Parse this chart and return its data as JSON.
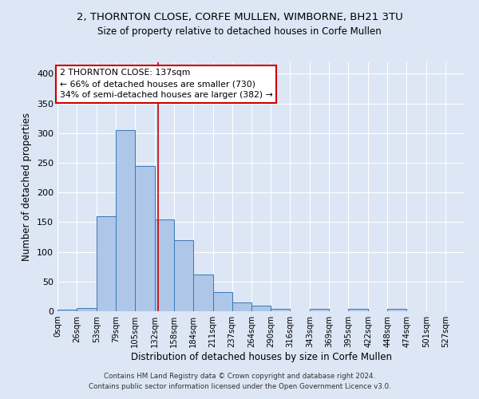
{
  "title1": "2, THORNTON CLOSE, CORFE MULLEN, WIMBORNE, BH21 3TU",
  "title2": "Size of property relative to detached houses in Corfe Mullen",
  "xlabel": "Distribution of detached houses by size in Corfe Mullen",
  "ylabel": "Number of detached properties",
  "bin_labels": [
    "0sqm",
    "26sqm",
    "53sqm",
    "79sqm",
    "105sqm",
    "132sqm",
    "158sqm",
    "184sqm",
    "211sqm",
    "237sqm",
    "264sqm",
    "290sqm",
    "316sqm",
    "343sqm",
    "369sqm",
    "395sqm",
    "422sqm",
    "448sqm",
    "474sqm",
    "501sqm",
    "527sqm"
  ],
  "bar_heights": [
    3,
    5,
    160,
    305,
    245,
    155,
    120,
    62,
    32,
    15,
    9,
    4,
    0,
    4,
    0,
    4,
    0,
    4,
    0,
    0
  ],
  "bin_edges": [
    0,
    26,
    53,
    79,
    105,
    132,
    158,
    184,
    211,
    237,
    264,
    290,
    316,
    343,
    369,
    395,
    422,
    448,
    474,
    501,
    527
  ],
  "bar_color": "#aec6e8",
  "bar_edge_color": "#3a78b5",
  "property_size": 137,
  "property_label": "2 THORNTON CLOSE: 137sqm",
  "annotation_line1": "← 66% of detached houses are smaller (730)",
  "annotation_line2": "34% of semi-detached houses are larger (382) →",
  "vline_color": "#cc0000",
  "annotation_box_color": "#ffffff",
  "annotation_box_edge": "#cc0000",
  "fig_bg_color": "#dce6f5",
  "plot_bg_color": "#dce6f5",
  "ylim": [
    0,
    420
  ],
  "footnote1": "Contains HM Land Registry data © Crown copyright and database right 2024.",
  "footnote2": "Contains public sector information licensed under the Open Government Licence v3.0."
}
